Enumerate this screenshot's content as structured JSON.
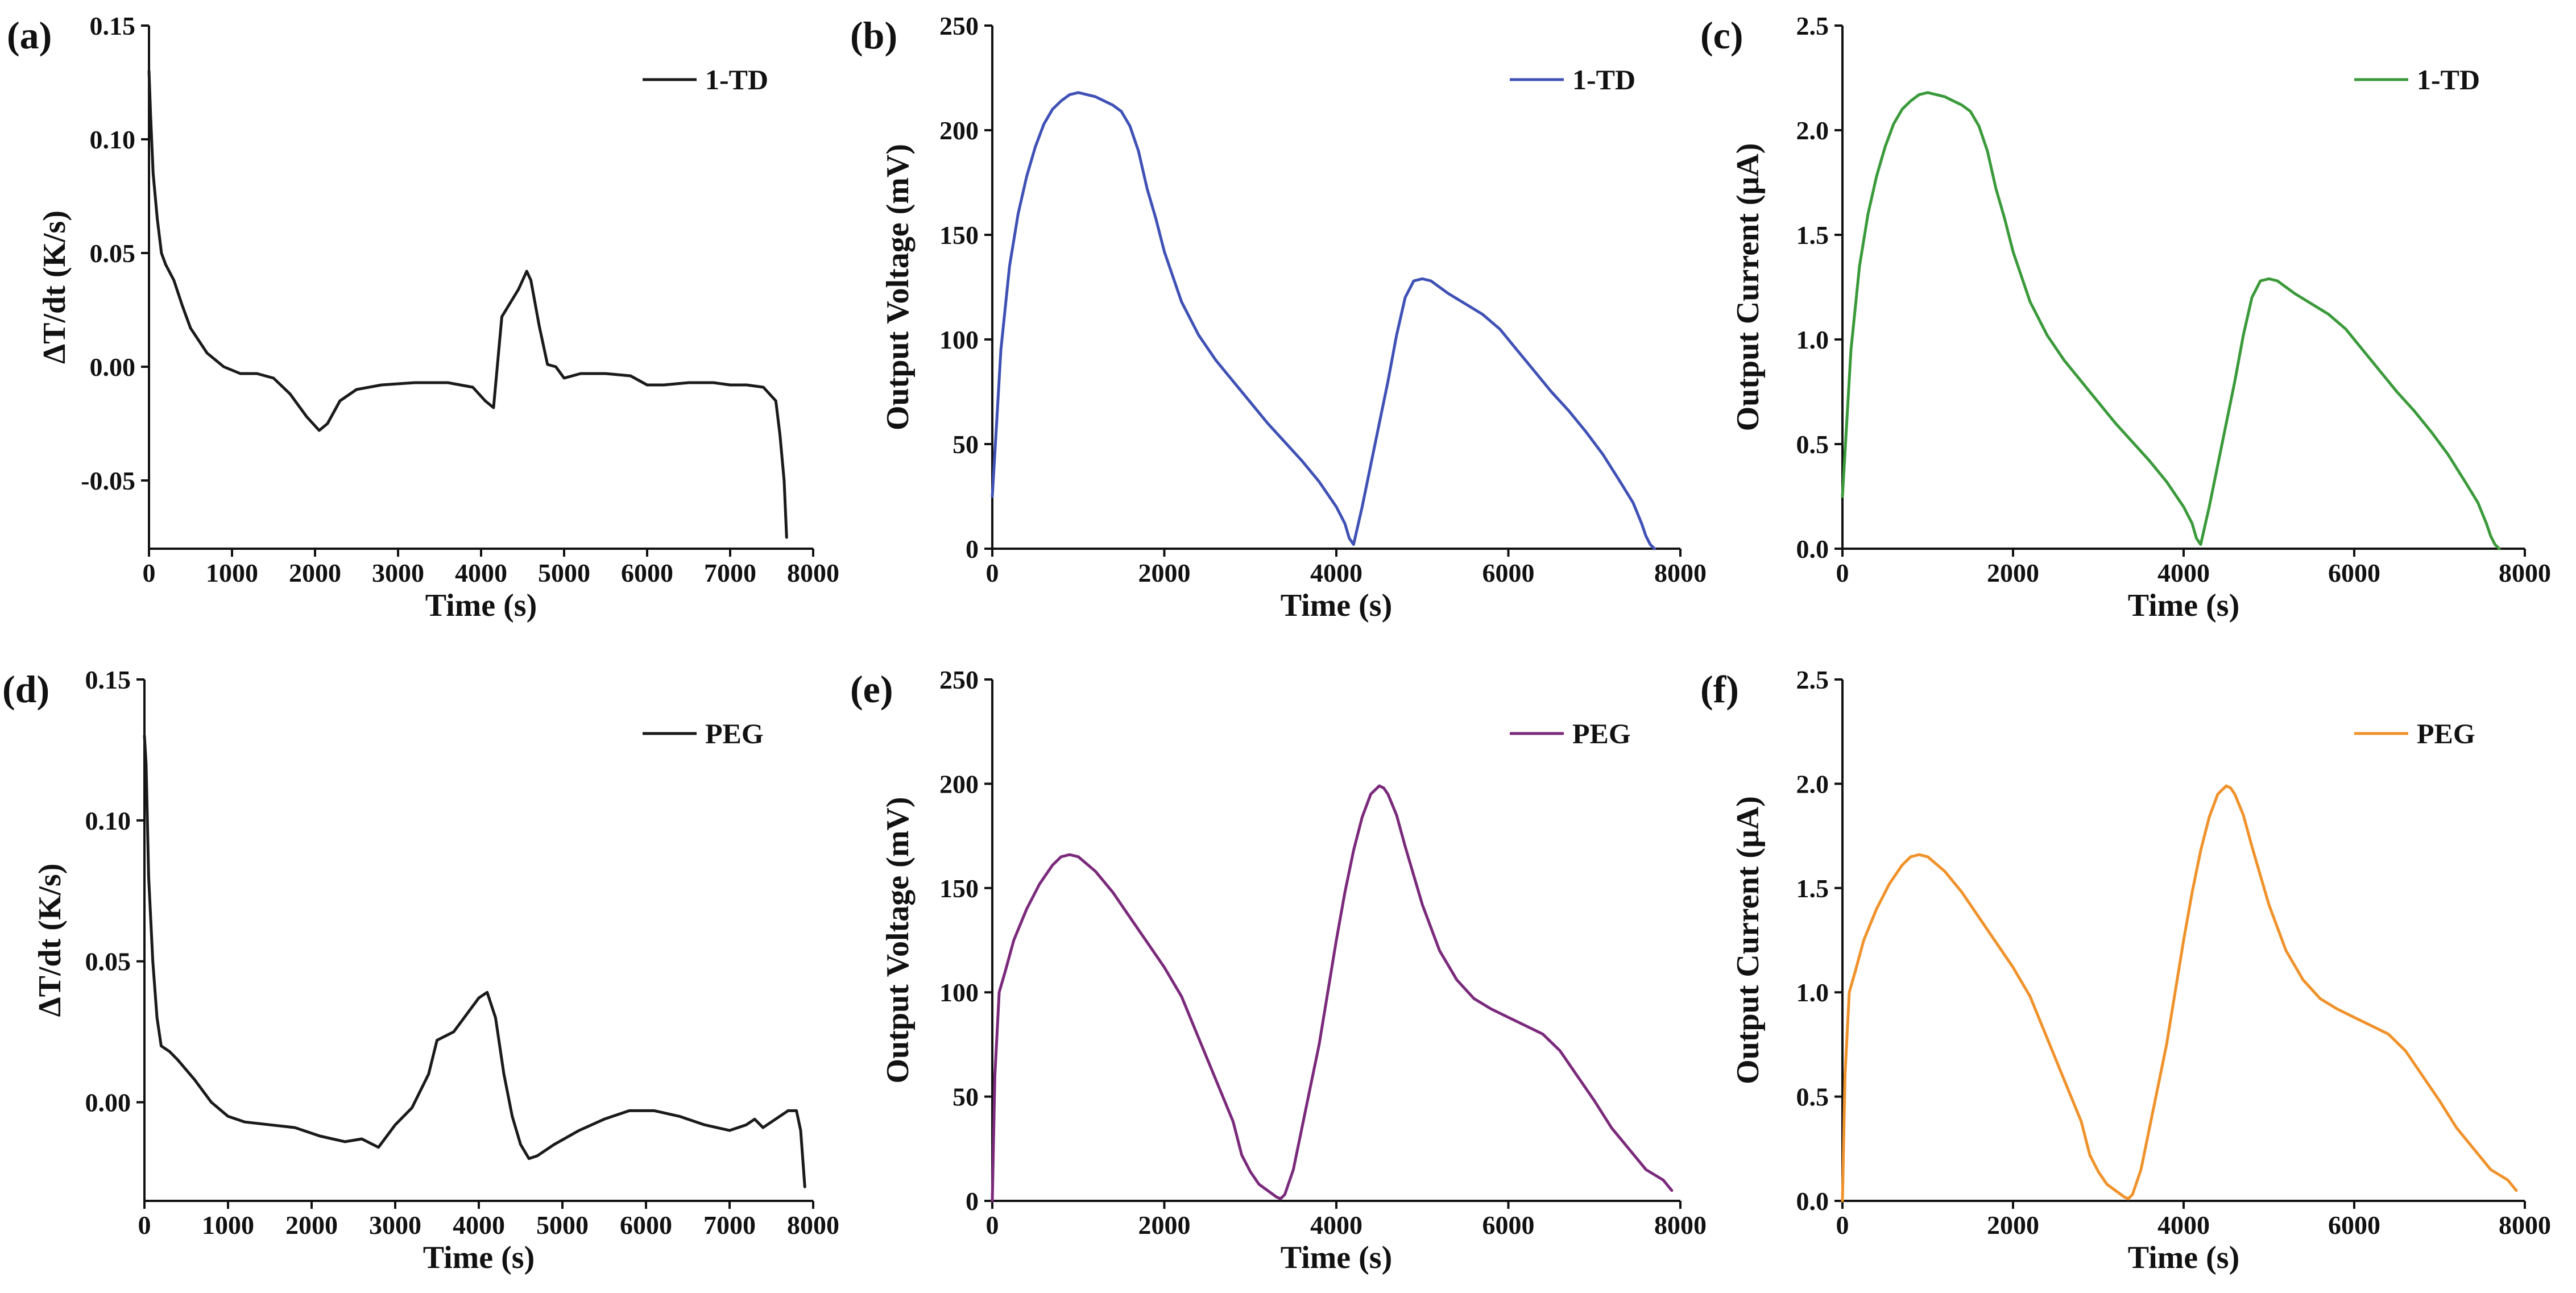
{
  "chart_data": [
    {
      "panel": "(a)",
      "type": "line",
      "xlabel": "Time (s)",
      "ylabel": "ΔT/dt (K/s)",
      "xlim": [
        0,
        8000
      ],
      "ylim": [
        -0.08,
        0.15
      ],
      "xticks": [
        0,
        1000,
        2000,
        3000,
        4000,
        5000,
        6000,
        7000,
        8000
      ],
      "xtick_labels": [
        "0",
        "1000",
        "2000",
        "3000",
        "4000",
        "5000",
        "6000",
        "7000",
        "8000"
      ],
      "yticks": [
        -0.05,
        0,
        0.05,
        0.1,
        0.15
      ],
      "ytick_labels": [
        "-0.05",
        "0.00",
        "0.05",
        "0.10",
        "0.15"
      ],
      "legend_position": "top-right",
      "series": [
        {
          "name": "1-TD",
          "color": "#1a1a1a",
          "x": [
            0,
            20,
            50,
            100,
            150,
            200,
            300,
            400,
            500,
            700,
            900,
            1100,
            1300,
            1500,
            1700,
            1900,
            2050,
            2150,
            2300,
            2500,
            2800,
            3200,
            3600,
            3900,
            4050,
            4150,
            4250,
            4350,
            4450,
            4550,
            4600,
            4700,
            4800,
            4900,
            5000,
            5200,
            5500,
            5800,
            6000,
            6200,
            6500,
            6800,
            7000,
            7200,
            7400,
            7550,
            7600,
            7650,
            7680
          ],
          "y": [
            0.13,
            0.11,
            0.085,
            0.065,
            0.05,
            0.045,
            0.038,
            0.027,
            0.017,
            0.006,
            0.0,
            -0.003,
            -0.003,
            -0.005,
            -0.012,
            -0.022,
            -0.028,
            -0.025,
            -0.015,
            -0.01,
            -0.008,
            -0.007,
            -0.007,
            -0.009,
            -0.015,
            -0.018,
            0.022,
            0.028,
            0.034,
            0.042,
            0.038,
            0.018,
            0.001,
            0.0,
            -0.005,
            -0.003,
            -0.003,
            -0.004,
            -0.008,
            -0.008,
            -0.007,
            -0.007,
            -0.008,
            -0.008,
            -0.009,
            -0.015,
            -0.03,
            -0.05,
            -0.075
          ]
        }
      ]
    },
    {
      "panel": "(b)",
      "type": "line",
      "xlabel": "Time (s)",
      "ylabel": "Output Voltage (mV)",
      "xlim": [
        0,
        8000
      ],
      "ylim": [
        0,
        250
      ],
      "xticks": [
        0,
        2000,
        4000,
        6000,
        8000
      ],
      "xtick_labels": [
        "0",
        "2000",
        "4000",
        "6000",
        "8000"
      ],
      "yticks": [
        0,
        50,
        100,
        150,
        200,
        250
      ],
      "ytick_labels": [
        "0",
        "50",
        "100",
        "150",
        "200",
        "250"
      ],
      "legend_position": "top-right",
      "series": [
        {
          "name": "1-TD",
          "color": "#3f51b5",
          "x": [
            0,
            50,
            100,
            200,
            300,
            400,
            500,
            600,
            700,
            800,
            900,
            1000,
            1100,
            1200,
            1300,
            1400,
            1500,
            1600,
            1700,
            1800,
            1900,
            2000,
            2100,
            2200,
            2400,
            2600,
            2800,
            3000,
            3200,
            3400,
            3600,
            3800,
            4000,
            4100,
            4150,
            4200,
            4300,
            4400,
            4500,
            4600,
            4700,
            4800,
            4900,
            5000,
            5100,
            5300,
            5500,
            5700,
            5900,
            6100,
            6300,
            6500,
            6700,
            6900,
            7100,
            7300,
            7450,
            7550,
            7600,
            7650,
            7700
          ],
          "y": [
            25,
            60,
            95,
            135,
            160,
            178,
            192,
            203,
            210,
            214,
            217,
            218,
            217,
            216,
            214,
            212,
            209,
            202,
            190,
            172,
            158,
            142,
            130,
            118,
            102,
            90,
            80,
            70,
            60,
            51,
            42,
            32,
            20,
            12,
            5,
            2,
            20,
            40,
            60,
            80,
            102,
            120,
            128,
            129,
            128,
            122,
            117,
            112,
            105,
            95,
            85,
            75,
            66,
            56,
            45,
            32,
            22,
            12,
            6,
            2,
            0
          ]
        }
      ]
    },
    {
      "panel": "(c)",
      "type": "line",
      "xlabel": "Time (s)",
      "ylabel": "Output Current (μA)",
      "xlim": [
        0,
        8000
      ],
      "ylim": [
        0,
        2.5
      ],
      "xticks": [
        0,
        2000,
        4000,
        6000,
        8000
      ],
      "xtick_labels": [
        "0",
        "2000",
        "4000",
        "6000",
        "8000"
      ],
      "yticks": [
        0,
        0.5,
        1.0,
        1.5,
        2.0,
        2.5
      ],
      "ytick_labels": [
        "0.0",
        "0.5",
        "1.0",
        "1.5",
        "2.0",
        "2.5"
      ],
      "legend_position": "top-right",
      "series": [
        {
          "name": "1-TD",
          "color": "#3a9a3a",
          "x": [
            0,
            50,
            100,
            200,
            300,
            400,
            500,
            600,
            700,
            800,
            900,
            1000,
            1100,
            1200,
            1300,
            1400,
            1500,
            1600,
            1700,
            1800,
            1900,
            2000,
            2100,
            2200,
            2400,
            2600,
            2800,
            3000,
            3200,
            3400,
            3600,
            3800,
            4000,
            4100,
            4150,
            4200,
            4300,
            4400,
            4500,
            4600,
            4700,
            4800,
            4900,
            5000,
            5100,
            5300,
            5500,
            5700,
            5900,
            6100,
            6300,
            6500,
            6700,
            6900,
            7100,
            7300,
            7450,
            7550,
            7600,
            7650,
            7700
          ],
          "y": [
            0.25,
            0.6,
            0.95,
            1.35,
            1.6,
            1.78,
            1.92,
            2.03,
            2.1,
            2.14,
            2.17,
            2.18,
            2.17,
            2.16,
            2.14,
            2.12,
            2.09,
            2.02,
            1.9,
            1.72,
            1.58,
            1.42,
            1.3,
            1.18,
            1.02,
            0.9,
            0.8,
            0.7,
            0.6,
            0.51,
            0.42,
            0.32,
            0.2,
            0.12,
            0.05,
            0.02,
            0.2,
            0.4,
            0.6,
            0.8,
            1.02,
            1.2,
            1.28,
            1.29,
            1.28,
            1.22,
            1.17,
            1.12,
            1.05,
            0.95,
            0.85,
            0.75,
            0.66,
            0.56,
            0.45,
            0.32,
            0.22,
            0.12,
            0.06,
            0.02,
            0.0
          ]
        }
      ]
    },
    {
      "panel": "(d)",
      "type": "line",
      "xlabel": "Time (s)",
      "ylabel": "ΔT/dt (K/s)",
      "xlim": [
        0,
        8000
      ],
      "ylim": [
        -0.035,
        0.15
      ],
      "xticks": [
        0,
        1000,
        2000,
        3000,
        4000,
        5000,
        6000,
        7000,
        8000
      ],
      "xtick_labels": [
        "0",
        "1000",
        "2000",
        "3000",
        "4000",
        "5000",
        "6000",
        "7000",
        "8000"
      ],
      "yticks": [
        0,
        0.05,
        0.1,
        0.15
      ],
      "ytick_labels": [
        "0.00",
        "0.05",
        "0.10",
        "0.15"
      ],
      "legend_position": "top-right",
      "series": [
        {
          "name": "PEG",
          "color": "#1a1a1a",
          "x": [
            0,
            20,
            50,
            100,
            150,
            200,
            300,
            400,
            600,
            800,
            1000,
            1200,
            1500,
            1800,
            2100,
            2400,
            2600,
            2800,
            3000,
            3200,
            3400,
            3500,
            3700,
            3900,
            4000,
            4100,
            4200,
            4300,
            4400,
            4500,
            4600,
            4700,
            4900,
            5200,
            5500,
            5800,
            6100,
            6400,
            6700,
            7000,
            7200,
            7300,
            7400,
            7500,
            7600,
            7700,
            7800,
            7850,
            7900
          ],
          "y": [
            0.13,
            0.12,
            0.08,
            0.05,
            0.03,
            0.02,
            0.018,
            0.015,
            0.008,
            0.0,
            -0.005,
            -0.007,
            -0.008,
            -0.009,
            -0.012,
            -0.014,
            -0.013,
            -0.016,
            -0.008,
            -0.002,
            0.01,
            0.022,
            0.025,
            0.033,
            0.037,
            0.039,
            0.03,
            0.01,
            -0.005,
            -0.015,
            -0.02,
            -0.019,
            -0.015,
            -0.01,
            -0.006,
            -0.003,
            -0.003,
            -0.005,
            -0.008,
            -0.01,
            -0.008,
            -0.006,
            -0.009,
            -0.007,
            -0.005,
            -0.003,
            -0.003,
            -0.01,
            -0.03
          ]
        }
      ]
    },
    {
      "panel": "(e)",
      "type": "line",
      "xlabel": "Time (s)",
      "ylabel": "Output Voltage (mV)",
      "xlim": [
        0,
        8000
      ],
      "ylim": [
        0,
        250
      ],
      "xticks": [
        0,
        2000,
        4000,
        6000,
        8000
      ],
      "xtick_labels": [
        "0",
        "2000",
        "4000",
        "6000",
        "8000"
      ],
      "yticks": [
        0,
        50,
        100,
        150,
        200,
        250
      ],
      "ytick_labels": [
        "0",
        "50",
        "100",
        "150",
        "200",
        "250"
      ],
      "legend_position": "top-right",
      "series": [
        {
          "name": "PEG",
          "color": "#7b2a7b",
          "x": [
            0,
            30,
            80,
            150,
            250,
            400,
            550,
            700,
            800,
            900,
            1000,
            1200,
            1400,
            1600,
            1800,
            2000,
            2200,
            2400,
            2600,
            2800,
            2900,
            3000,
            3100,
            3200,
            3300,
            3350,
            3400,
            3500,
            3600,
            3700,
            3800,
            3900,
            4000,
            4100,
            4200,
            4300,
            4400,
            4500,
            4550,
            4600,
            4700,
            4800,
            5000,
            5200,
            5400,
            5600,
            5800,
            6000,
            6200,
            6400,
            6600,
            6800,
            7000,
            7200,
            7400,
            7600,
            7800,
            7900
          ],
          "y": [
            0,
            60,
            100,
            110,
            125,
            140,
            152,
            161,
            165,
            166,
            165,
            158,
            148,
            136,
            124,
            112,
            98,
            78,
            58,
            38,
            22,
            14,
            8,
            5,
            2,
            1,
            3,
            15,
            35,
            55,
            75,
            100,
            125,
            148,
            168,
            184,
            195,
            199,
            198,
            195,
            185,
            170,
            142,
            120,
            106,
            97,
            92,
            88,
            84,
            80,
            72,
            60,
            48,
            35,
            25,
            15,
            10,
            5
          ]
        }
      ]
    },
    {
      "panel": "(f)",
      "type": "line",
      "xlabel": "Time (s)",
      "ylabel": "Output Current (μA)",
      "xlim": [
        0,
        8000
      ],
      "ylim": [
        0,
        2.5
      ],
      "xticks": [
        0,
        2000,
        4000,
        6000,
        8000
      ],
      "xtick_labels": [
        "0",
        "2000",
        "4000",
        "6000",
        "8000"
      ],
      "yticks": [
        0,
        0.5,
        1.0,
        1.5,
        2.0,
        2.5
      ],
      "ytick_labels": [
        "0.0",
        "0.5",
        "1.0",
        "1.5",
        "2.0",
        "2.5"
      ],
      "legend_position": "top-right",
      "series": [
        {
          "name": "PEG",
          "color": "#f0922b",
          "x": [
            0,
            30,
            80,
            150,
            250,
            400,
            550,
            700,
            800,
            900,
            1000,
            1200,
            1400,
            1600,
            1800,
            2000,
            2200,
            2400,
            2600,
            2800,
            2900,
            3000,
            3100,
            3200,
            3300,
            3350,
            3400,
            3500,
            3600,
            3700,
            3800,
            3900,
            4000,
            4100,
            4200,
            4300,
            4400,
            4500,
            4550,
            4600,
            4700,
            4800,
            5000,
            5200,
            5400,
            5600,
            5800,
            6000,
            6200,
            6400,
            6600,
            6800,
            7000,
            7200,
            7400,
            7600,
            7800,
            7900
          ],
          "y": [
            0,
            0.6,
            1.0,
            1.1,
            1.25,
            1.4,
            1.52,
            1.61,
            1.65,
            1.66,
            1.65,
            1.58,
            1.48,
            1.36,
            1.24,
            1.12,
            0.98,
            0.78,
            0.58,
            0.38,
            0.22,
            0.14,
            0.08,
            0.05,
            0.02,
            0.01,
            0.03,
            0.15,
            0.35,
            0.55,
            0.75,
            1.0,
            1.25,
            1.48,
            1.68,
            1.84,
            1.95,
            1.99,
            1.98,
            1.95,
            1.85,
            1.7,
            1.42,
            1.2,
            1.06,
            0.97,
            0.92,
            0.88,
            0.84,
            0.8,
            0.72,
            0.6,
            0.48,
            0.35,
            0.25,
            0.15,
            0.1,
            0.05
          ]
        }
      ]
    }
  ]
}
